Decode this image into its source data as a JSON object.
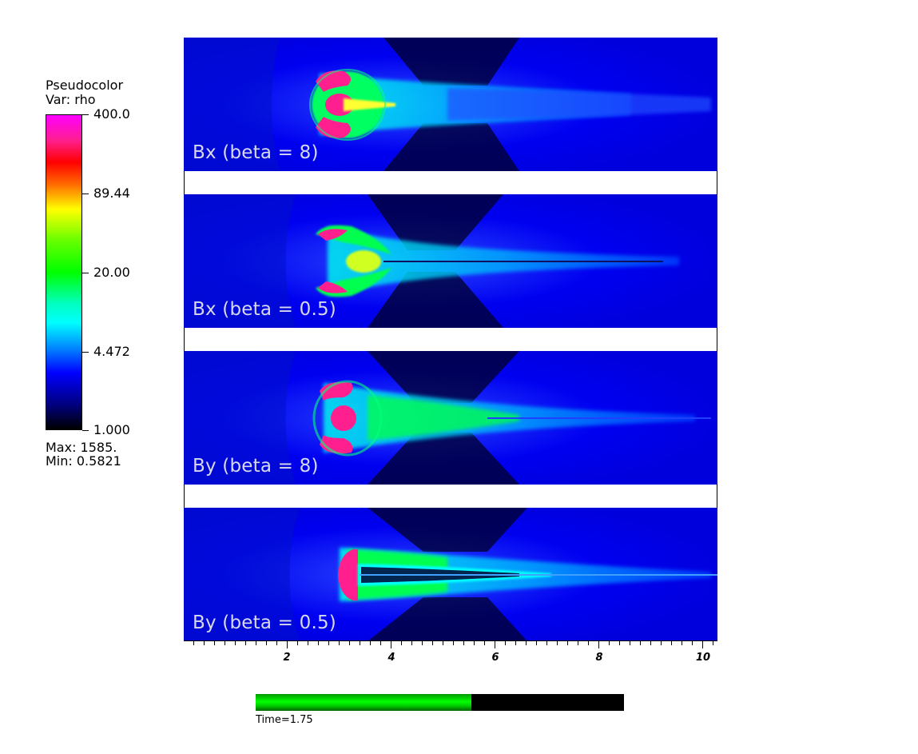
{
  "legend": {
    "title": "Pseudocolor",
    "variable": "Var: rho",
    "ticks": [
      "400.0",
      "89.44",
      "20.00",
      "4.472",
      "1.000"
    ],
    "max_text": "Max:  1585.",
    "min_text": "Min:  0.5821"
  },
  "panels": [
    {
      "label": "Bx (beta = 8)"
    },
    {
      "label": "Bx (beta = 0.5)"
    },
    {
      "label": "By (beta = 8)"
    },
    {
      "label": "By (beta = 0.5)"
    }
  ],
  "axis": {
    "labels": [
      "2",
      "4",
      "6",
      "8",
      "10"
    ]
  },
  "time": {
    "label": "Time=1.75",
    "progress": 0.585
  },
  "colors": {
    "background_blue": "#0000ee",
    "jet_pink": "#ff1f8f",
    "jet_red": "#ff0000",
    "jet_green": "#00ff00",
    "jet_cyan": "#00ffff",
    "time_bar_fill": "#00ff00"
  }
}
